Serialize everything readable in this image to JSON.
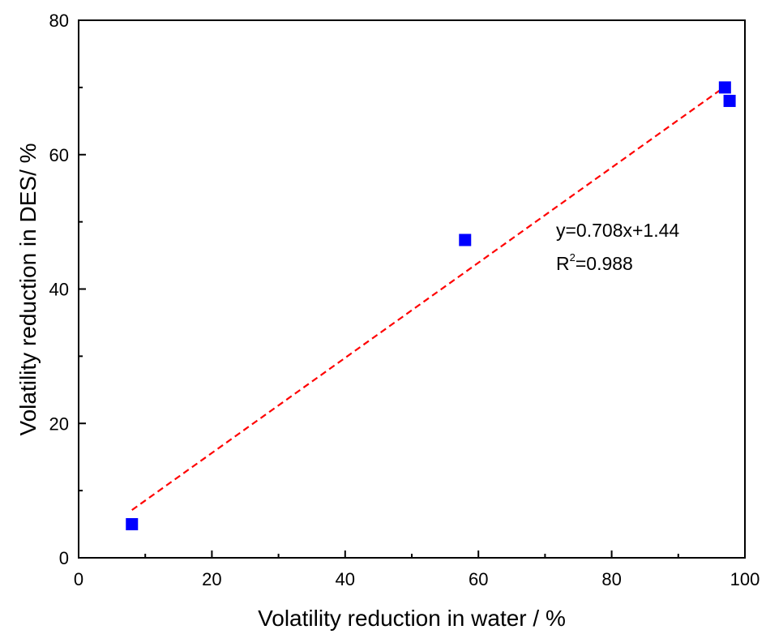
{
  "chart_data": {
    "type": "scatter",
    "xlabel": "Volatility reduction in water / %",
    "ylabel": "Volatility reduction in DES/ %",
    "xlim": [
      0,
      100
    ],
    "ylim": [
      0,
      80
    ],
    "xticks": [
      0,
      20,
      40,
      60,
      80,
      100
    ],
    "yticks": [
      0,
      20,
      40,
      60,
      80
    ],
    "grid": false,
    "legend": "none",
    "series": [
      {
        "marker": "square",
        "color": "#0000ff",
        "points": [
          {
            "x": 8,
            "y": 5
          },
          {
            "x": 58,
            "y": 47.3
          },
          {
            "x": 97,
            "y": 70
          },
          {
            "x": 97.7,
            "y": 68
          }
        ]
      }
    ],
    "fit": {
      "style": "dashed",
      "color": "#ff0000",
      "slope": 0.708,
      "intercept": 1.44,
      "x_range": [
        8,
        97
      ]
    },
    "annotations": {
      "equation": "y=0.708x+1.44",
      "r2_prefix": "R",
      "r2_sup": "2",
      "r2_value": "=0.988"
    }
  }
}
